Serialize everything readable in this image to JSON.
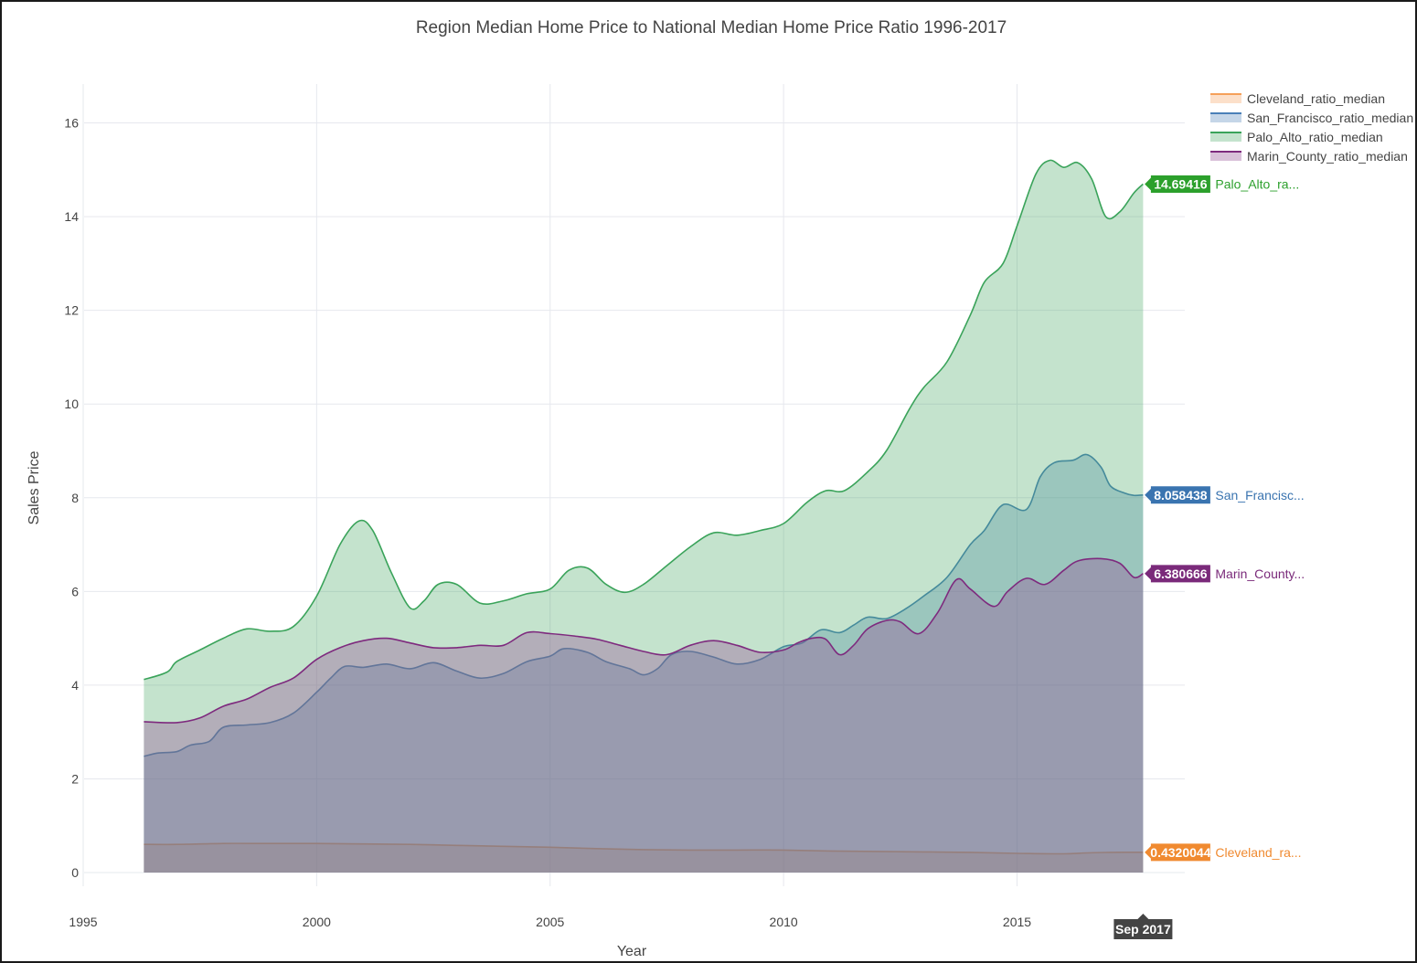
{
  "chart_data": {
    "type": "area",
    "title": "Region Median Home Price to National Median Home Price Ratio 1996-2017",
    "xlabel": "Year",
    "ylabel": "Sales Price",
    "xlim": [
      1995,
      2018.5
    ],
    "ylim": [
      -0.3,
      16.8
    ],
    "x_ticks": [
      1995,
      2000,
      2005,
      2010,
      2015
    ],
    "y_ticks": [
      0,
      2,
      4,
      6,
      8,
      10,
      12,
      14,
      16
    ],
    "grid": true,
    "legend_position": "top-right",
    "spike_label": "Sep 2017",
    "series": [
      {
        "name": "Cleveland_ratio_median",
        "line_color": "#f5a05a",
        "fill_color": "rgba(245,160,90,0.32)",
        "label_color": "#f08a30",
        "end_value": "0.4320044",
        "end_label": "Cleveland_ra...",
        "points": [
          [
            1996.3,
            0.6
          ],
          [
            1997.0,
            0.6
          ],
          [
            1998.0,
            0.62
          ],
          [
            1999.0,
            0.62
          ],
          [
            2000.0,
            0.62
          ],
          [
            2001.0,
            0.61
          ],
          [
            2002.0,
            0.6
          ],
          [
            2003.0,
            0.58
          ],
          [
            2004.0,
            0.56
          ],
          [
            2005.0,
            0.54
          ],
          [
            2006.0,
            0.51
          ],
          [
            2007.0,
            0.49
          ],
          [
            2008.0,
            0.48
          ],
          [
            2009.0,
            0.48
          ],
          [
            2010.0,
            0.48
          ],
          [
            2011.0,
            0.46
          ],
          [
            2012.0,
            0.45
          ],
          [
            2013.0,
            0.44
          ],
          [
            2014.0,
            0.43
          ],
          [
            2015.0,
            0.41
          ],
          [
            2016.0,
            0.4
          ],
          [
            2016.5,
            0.42
          ],
          [
            2017.0,
            0.43
          ],
          [
            2017.7,
            0.432
          ]
        ]
      },
      {
        "name": "San_Francisco_ratio_median",
        "line_color": "#4a80b8",
        "fill_color": "rgba(74,128,184,0.32)",
        "label_color": "#3a74b0",
        "end_value": "8.058438",
        "end_label": "San_Francisc...",
        "points": [
          [
            1996.3,
            2.48
          ],
          [
            1996.6,
            2.55
          ],
          [
            1997.0,
            2.58
          ],
          [
            1997.3,
            2.72
          ],
          [
            1997.7,
            2.8
          ],
          [
            1998.0,
            3.1
          ],
          [
            1998.5,
            3.15
          ],
          [
            1999.0,
            3.2
          ],
          [
            1999.5,
            3.4
          ],
          [
            2000.0,
            3.85
          ],
          [
            2000.3,
            4.15
          ],
          [
            2000.6,
            4.4
          ],
          [
            2001.0,
            4.38
          ],
          [
            2001.5,
            4.45
          ],
          [
            2002.0,
            4.35
          ],
          [
            2002.5,
            4.48
          ],
          [
            2003.0,
            4.3
          ],
          [
            2003.5,
            4.15
          ],
          [
            2004.0,
            4.25
          ],
          [
            2004.5,
            4.5
          ],
          [
            2005.0,
            4.62
          ],
          [
            2005.3,
            4.78
          ],
          [
            2005.8,
            4.7
          ],
          [
            2006.2,
            4.5
          ],
          [
            2006.7,
            4.35
          ],
          [
            2007.0,
            4.22
          ],
          [
            2007.3,
            4.35
          ],
          [
            2007.6,
            4.65
          ],
          [
            2008.0,
            4.72
          ],
          [
            2008.5,
            4.6
          ],
          [
            2009.0,
            4.45
          ],
          [
            2009.5,
            4.55
          ],
          [
            2010.0,
            4.82
          ],
          [
            2010.4,
            4.9
          ],
          [
            2010.8,
            5.18
          ],
          [
            2011.2,
            5.12
          ],
          [
            2011.5,
            5.28
          ],
          [
            2011.8,
            5.45
          ],
          [
            2012.2,
            5.42
          ],
          [
            2012.6,
            5.62
          ],
          [
            2013.0,
            5.9
          ],
          [
            2013.5,
            6.3
          ],
          [
            2014.0,
            7.0
          ],
          [
            2014.3,
            7.3
          ],
          [
            2014.7,
            7.85
          ],
          [
            2015.2,
            7.75
          ],
          [
            2015.5,
            8.45
          ],
          [
            2015.8,
            8.75
          ],
          [
            2016.2,
            8.8
          ],
          [
            2016.5,
            8.92
          ],
          [
            2016.8,
            8.65
          ],
          [
            2017.0,
            8.25
          ],
          [
            2017.3,
            8.1
          ],
          [
            2017.5,
            8.05
          ],
          [
            2017.7,
            8.058
          ]
        ]
      },
      {
        "name": "Palo_Alto_ratio_median",
        "line_color": "#3aa35a",
        "fill_color": "rgba(58,163,90,0.3)",
        "label_color": "#2ca02c",
        "end_value": "14.69416",
        "end_label": "Palo_Alto_ra...",
        "points": [
          [
            1996.3,
            4.12
          ],
          [
            1996.8,
            4.28
          ],
          [
            1997.0,
            4.5
          ],
          [
            1997.5,
            4.75
          ],
          [
            1998.0,
            5.0
          ],
          [
            1998.5,
            5.2
          ],
          [
            1999.0,
            5.15
          ],
          [
            1999.5,
            5.25
          ],
          [
            2000.0,
            5.9
          ],
          [
            2000.5,
            7.0
          ],
          [
            2000.9,
            7.5
          ],
          [
            2001.2,
            7.3
          ],
          [
            2001.6,
            6.4
          ],
          [
            2002.0,
            5.65
          ],
          [
            2002.3,
            5.8
          ],
          [
            2002.6,
            6.15
          ],
          [
            2003.0,
            6.15
          ],
          [
            2003.5,
            5.75
          ],
          [
            2004.0,
            5.8
          ],
          [
            2004.5,
            5.95
          ],
          [
            2005.0,
            6.05
          ],
          [
            2005.4,
            6.45
          ],
          [
            2005.8,
            6.5
          ],
          [
            2006.2,
            6.15
          ],
          [
            2006.6,
            5.98
          ],
          [
            2007.0,
            6.15
          ],
          [
            2007.5,
            6.55
          ],
          [
            2008.0,
            6.95
          ],
          [
            2008.5,
            7.25
          ],
          [
            2009.0,
            7.2
          ],
          [
            2009.5,
            7.3
          ],
          [
            2010.0,
            7.45
          ],
          [
            2010.5,
            7.9
          ],
          [
            2010.9,
            8.15
          ],
          [
            2011.3,
            8.15
          ],
          [
            2011.8,
            8.55
          ],
          [
            2012.2,
            9.0
          ],
          [
            2012.7,
            9.9
          ],
          [
            2013.0,
            10.35
          ],
          [
            2013.5,
            10.9
          ],
          [
            2014.0,
            11.9
          ],
          [
            2014.3,
            12.6
          ],
          [
            2014.7,
            13.0
          ],
          [
            2015.0,
            13.8
          ],
          [
            2015.4,
            14.9
          ],
          [
            2015.7,
            15.2
          ],
          [
            2016.0,
            15.05
          ],
          [
            2016.3,
            15.15
          ],
          [
            2016.6,
            14.8
          ],
          [
            2016.9,
            14.0
          ],
          [
            2017.2,
            14.1
          ],
          [
            2017.5,
            14.5
          ],
          [
            2017.7,
            14.694
          ]
        ]
      },
      {
        "name": "Marin_County_ratio_median",
        "line_color": "#7e2a7e",
        "fill_color": "rgba(150,80,150,0.36)",
        "label_color": "#7a2a7a",
        "end_value": "6.380666",
        "end_label": "Marin_County...",
        "points": [
          [
            1996.3,
            3.22
          ],
          [
            1997.0,
            3.2
          ],
          [
            1997.5,
            3.3
          ],
          [
            1998.0,
            3.55
          ],
          [
            1998.5,
            3.7
          ],
          [
            1999.0,
            3.95
          ],
          [
            1999.5,
            4.15
          ],
          [
            2000.0,
            4.55
          ],
          [
            2000.5,
            4.8
          ],
          [
            2001.0,
            4.95
          ],
          [
            2001.5,
            5.0
          ],
          [
            2002.0,
            4.9
          ],
          [
            2002.5,
            4.8
          ],
          [
            2003.0,
            4.8
          ],
          [
            2003.5,
            4.85
          ],
          [
            2004.0,
            4.85
          ],
          [
            2004.5,
            5.12
          ],
          [
            2005.0,
            5.1
          ],
          [
            2005.5,
            5.05
          ],
          [
            2006.0,
            4.98
          ],
          [
            2006.5,
            4.85
          ],
          [
            2007.0,
            4.72
          ],
          [
            2007.5,
            4.65
          ],
          [
            2008.0,
            4.85
          ],
          [
            2008.5,
            4.95
          ],
          [
            2009.0,
            4.85
          ],
          [
            2009.5,
            4.7
          ],
          [
            2010.0,
            4.75
          ],
          [
            2010.3,
            4.9
          ],
          [
            2010.6,
            5.0
          ],
          [
            2010.9,
            4.98
          ],
          [
            2011.2,
            4.65
          ],
          [
            2011.5,
            4.85
          ],
          [
            2011.8,
            5.2
          ],
          [
            2012.2,
            5.38
          ],
          [
            2012.5,
            5.35
          ],
          [
            2012.9,
            5.1
          ],
          [
            2013.3,
            5.55
          ],
          [
            2013.7,
            6.25
          ],
          [
            2014.0,
            6.05
          ],
          [
            2014.5,
            5.68
          ],
          [
            2014.8,
            6.0
          ],
          [
            2015.2,
            6.28
          ],
          [
            2015.6,
            6.15
          ],
          [
            2016.0,
            6.45
          ],
          [
            2016.3,
            6.65
          ],
          [
            2016.8,
            6.7
          ],
          [
            2017.2,
            6.6
          ],
          [
            2017.5,
            6.3
          ],
          [
            2017.7,
            6.38
          ]
        ]
      }
    ]
  }
}
